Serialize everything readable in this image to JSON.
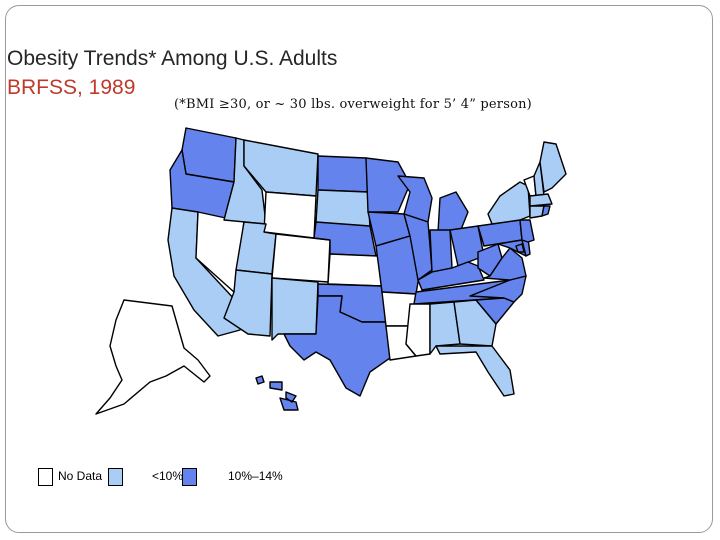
{
  "slide": {
    "title_line1": "Obesity Trends* Among U.S. Adults",
    "title_line2": "BRFSS, 1989",
    "subtitle": "(*BMI ≥30, or ~ 30 lbs. overweight for 5’ 4” person)"
  },
  "colors": {
    "no_data": "#ffffff",
    "under_10": "#a9cdf5",
    "ten_to_14": "#6483ec",
    "title_accent": "#c0392b"
  },
  "legend": {
    "items": [
      {
        "key": "no_data",
        "label": "No Data",
        "color": "#ffffff"
      },
      {
        "key": "under_10",
        "label": "<10%",
        "color": "#a9cdf5"
      },
      {
        "key": "ten_to_14",
        "label": "10%–14%",
        "color": "#6483ec"
      }
    ]
  },
  "map": {
    "states": {
      "WA": "ten_to_14",
      "OR": "ten_to_14",
      "CA": "under_10",
      "NV": "no_data",
      "ID": "under_10",
      "MT": "under_10",
      "WY": "no_data",
      "UT": "under_10",
      "CO": "no_data",
      "AZ": "under_10",
      "NM": "under_10",
      "ND": "ten_to_14",
      "SD": "under_10",
      "NE": "ten_to_14",
      "KS": "no_data",
      "OK": "ten_to_14",
      "TX": "ten_to_14",
      "MN": "ten_to_14",
      "IA": "ten_to_14",
      "MO": "ten_to_14",
      "AR": "no_data",
      "LA": "no_data",
      "WI": "ten_to_14",
      "IL": "ten_to_14",
      "MS": "no_data",
      "MI": "ten_to_14",
      "IN": "ten_to_14",
      "KY": "ten_to_14",
      "TN": "ten_to_14",
      "AL": "under_10",
      "OH": "ten_to_14",
      "WV": "ten_to_14",
      "GA": "under_10",
      "FL": "under_10",
      "SC": "ten_to_14",
      "NC": "ten_to_14",
      "VA": "ten_to_14",
      "PA": "ten_to_14",
      "NY": "under_10",
      "ME": "under_10",
      "VT": "no_data",
      "NH": "under_10",
      "MA": "under_10",
      "CT": "under_10",
      "RI": "ten_to_14",
      "NJ": "ten_to_14",
      "DE": "ten_to_14",
      "MD": "ten_to_14",
      "DC": "ten_to_14",
      "AK": "no_data",
      "HI": "ten_to_14"
    }
  }
}
